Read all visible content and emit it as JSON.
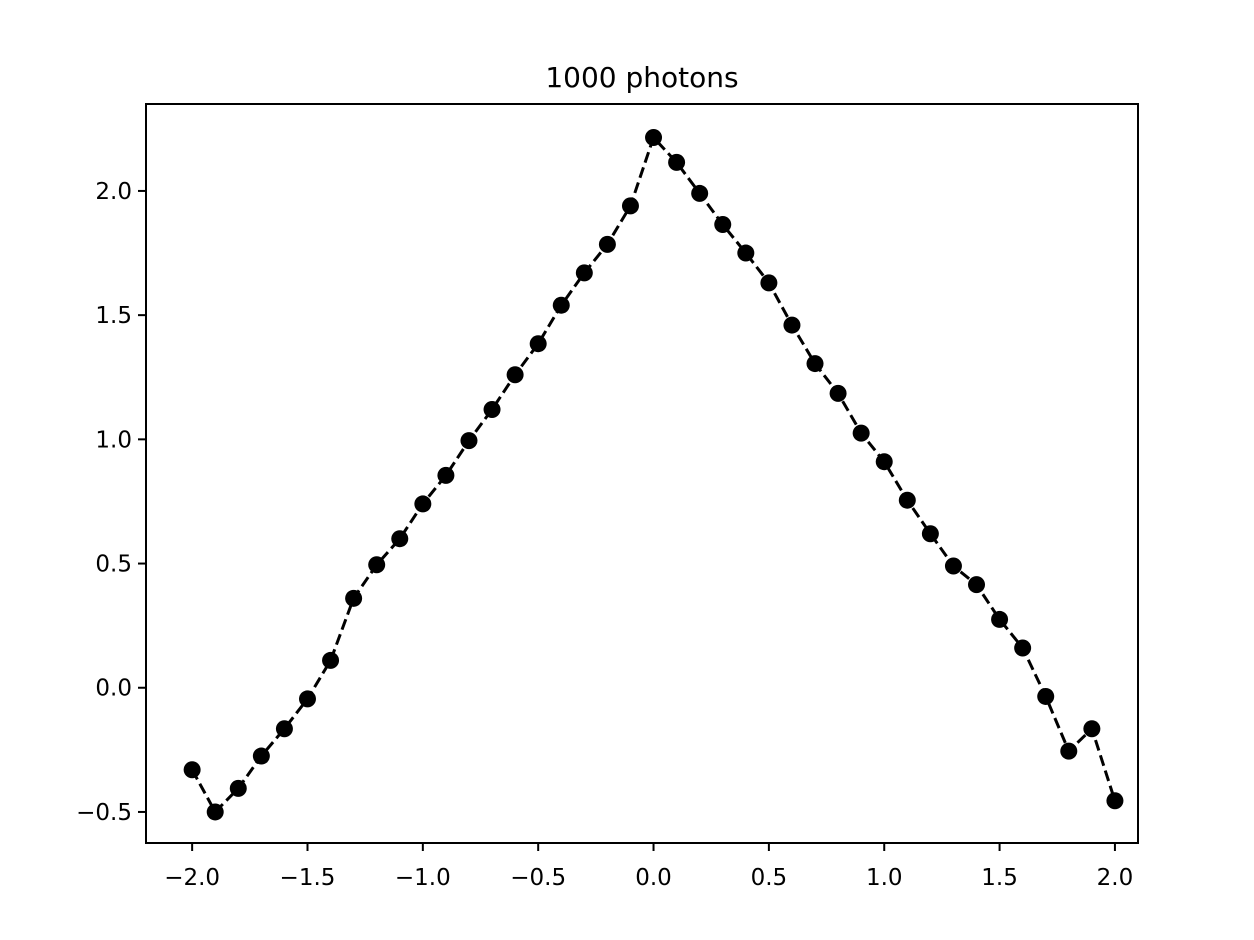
{
  "chart_data": {
    "type": "line",
    "title": "1000 photons",
    "xlabel": "",
    "ylabel": "",
    "xlim": [
      -2.2,
      2.1
    ],
    "ylim": [
      -0.625,
      2.35
    ],
    "grid": false,
    "legend": "none",
    "line_style": "dashed",
    "marker": "circle",
    "color": "#000000",
    "x_ticks": [
      -2.0,
      -1.5,
      -1.0,
      -0.5,
      0.0,
      0.5,
      1.0,
      1.5,
      2.0
    ],
    "x_tick_labels": [
      "−2.0",
      "−1.5",
      "−1.0",
      "−0.5",
      "0.0",
      "0.5",
      "1.0",
      "1.5",
      "2.0"
    ],
    "y_ticks": [
      -0.5,
      0.0,
      0.5,
      1.0,
      1.5,
      2.0
    ],
    "y_tick_labels": [
      "−0.5",
      "0.0",
      "0.5",
      "1.0",
      "1.5",
      "2.0"
    ],
    "series": [
      {
        "x": [
          -2.0,
          -1.9,
          -1.8,
          -1.7,
          -1.6,
          -1.5,
          -1.4,
          -1.3,
          -1.2,
          -1.1,
          -1.0,
          -0.9,
          -0.8,
          -0.7,
          -0.6,
          -0.5,
          -0.4,
          -0.3,
          -0.2,
          -0.1,
          0.0,
          0.1,
          0.2,
          0.3,
          0.4,
          0.5,
          0.6,
          0.7,
          0.8,
          0.9,
          1.0,
          1.1,
          1.2,
          1.3,
          1.4,
          1.5,
          1.6,
          1.7,
          1.8,
          1.9,
          2.0
        ],
        "y": [
          -0.33,
          -0.5,
          -0.405,
          -0.275,
          -0.165,
          -0.045,
          0.11,
          0.36,
          0.495,
          0.6,
          0.74,
          0.855,
          0.995,
          1.12,
          1.26,
          1.385,
          1.54,
          1.67,
          1.785,
          1.94,
          2.215,
          2.115,
          1.99,
          1.865,
          1.75,
          1.63,
          1.46,
          1.305,
          1.185,
          1.025,
          0.91,
          0.755,
          0.62,
          0.49,
          0.415,
          0.275,
          0.16,
          -0.035,
          -0.255,
          -0.165,
          -0.455
        ]
      }
    ]
  }
}
